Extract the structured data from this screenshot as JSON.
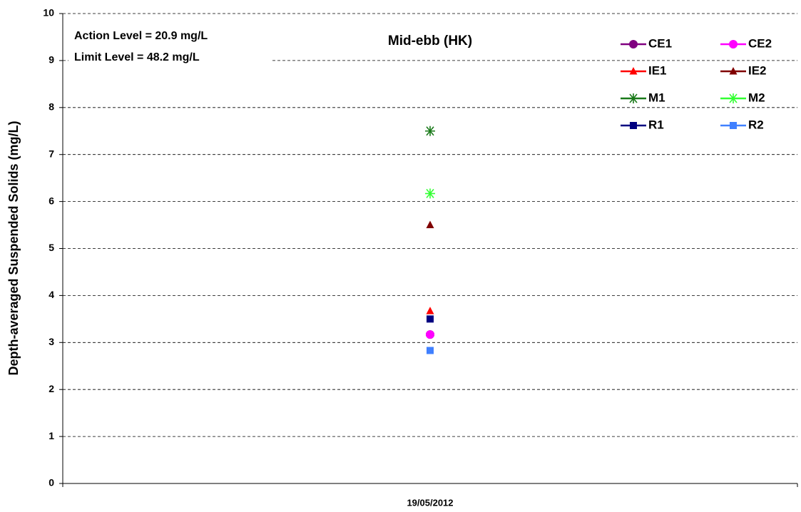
{
  "chart_data": {
    "type": "line",
    "title": "Mid-ebb (HK)",
    "y_label": "Depth-averaged Suspended Solids (mg/L)",
    "annotations": [
      "Action Level = 20.9 mg/L",
      "Limit Level = 48.2 mg/L"
    ],
    "categories": [
      "19/05/2012"
    ],
    "series": [
      {
        "name": "CE1",
        "color": "#800080",
        "marker": "circle",
        "values": [
          3.17
        ]
      },
      {
        "name": "CE2",
        "color": "#ff00ff",
        "marker": "circle",
        "values": [
          3.17
        ]
      },
      {
        "name": "IE1",
        "color": "#ff0000",
        "marker": "triangle",
        "values": [
          3.67
        ]
      },
      {
        "name": "IE2",
        "color": "#800000",
        "marker": "triangle",
        "values": [
          5.5
        ]
      },
      {
        "name": "M1",
        "color": "#1a7a1a",
        "marker": "star",
        "values": [
          7.5
        ]
      },
      {
        "name": "M2",
        "color": "#33ff33",
        "marker": "star",
        "values": [
          6.17
        ]
      },
      {
        "name": "R1",
        "color": "#000080",
        "marker": "square",
        "values": [
          3.5
        ]
      },
      {
        "name": "R2",
        "color": "#4080ff",
        "marker": "square",
        "values": [
          2.83
        ]
      }
    ],
    "ylim": [
      0,
      10
    ],
    "yticks": [
      0,
      1,
      2,
      3,
      4,
      5,
      6,
      7,
      8,
      9,
      10
    ],
    "grid": true
  }
}
